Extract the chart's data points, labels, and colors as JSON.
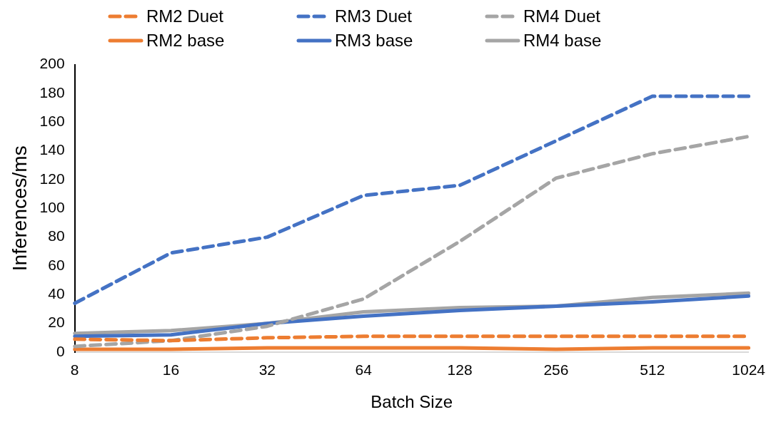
{
  "chart_data": {
    "type": "line",
    "xlabel": "Batch Size",
    "ylabel": "Inferences/ms",
    "categories": [
      "8",
      "16",
      "32",
      "64",
      "128",
      "256",
      "512",
      "1024"
    ],
    "ylim": [
      0,
      200
    ],
    "yticks": [
      0,
      20,
      40,
      60,
      80,
      100,
      120,
      140,
      160,
      180,
      200
    ],
    "grid": false,
    "legend": "top",
    "marker": "none",
    "series": [
      {
        "name": "RM2 Duet",
        "color": "#ed7d31",
        "line_style": "dashed",
        "values": [
          9,
          8,
          10,
          11,
          11,
          11,
          11,
          11
        ]
      },
      {
        "name": "RM3 Duet",
        "color": "#4472c4",
        "line_style": "dashed",
        "values": [
          34,
          69,
          80,
          109,
          116,
          147,
          178,
          178
        ]
      },
      {
        "name": "RM4 Duet",
        "color": "#a5a5a5",
        "line_style": "dashed",
        "values": [
          4,
          8,
          18,
          37,
          77,
          121,
          138,
          150
        ]
      },
      {
        "name": "RM2 base",
        "color": "#ed7d31",
        "line_style": "solid",
        "values": [
          2,
          2,
          3,
          3,
          3,
          2,
          3,
          3
        ]
      },
      {
        "name": "RM3 base",
        "color": "#4472c4",
        "line_style": "solid",
        "values": [
          11,
          12,
          20,
          25,
          29,
          32,
          35,
          39
        ]
      },
      {
        "name": "RM4 base",
        "color": "#a5a5a5",
        "line_style": "solid",
        "values": [
          13,
          15,
          20,
          28,
          31,
          32,
          38,
          41
        ]
      }
    ]
  }
}
